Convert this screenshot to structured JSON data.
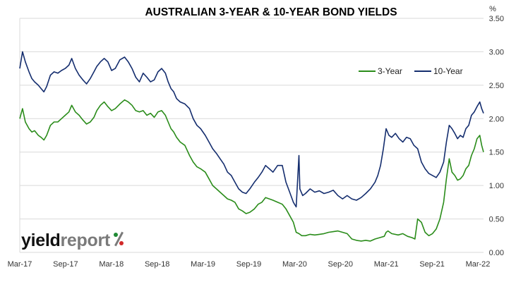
{
  "chart_data": {
    "type": "line",
    "title": "AUSTRALIAN 3-YEAR & 10-YEAR BOND YIELDS",
    "ylabel": "%",
    "ylim": [
      0,
      3.5
    ],
    "yticks": [
      "0.00",
      "0.50",
      "1.00",
      "1.50",
      "2.00",
      "2.50",
      "3.00",
      "3.50"
    ],
    "xticks": [
      "Mar-17",
      "Sep-17",
      "Mar-18",
      "Sep-18",
      "Mar-19",
      "Sep-19",
      "Mar-20",
      "Sep-20",
      "Mar-21",
      "Sep-21",
      "Mar-22"
    ],
    "x_range": [
      2017.17,
      2022.17
    ],
    "grid": "horizontal",
    "legend_position": "top-right",
    "series": [
      {
        "name": "3-Year",
        "color": "#2a8c1a",
        "points": [
          [
            2017.17,
            2.0
          ],
          [
            2017.2,
            2.15
          ],
          [
            2017.23,
            1.95
          ],
          [
            2017.27,
            1.85
          ],
          [
            2017.3,
            1.8
          ],
          [
            2017.33,
            1.82
          ],
          [
            2017.37,
            1.75
          ],
          [
            2017.4,
            1.72
          ],
          [
            2017.43,
            1.68
          ],
          [
            2017.46,
            1.75
          ],
          [
            2017.5,
            1.9
          ],
          [
            2017.54,
            1.95
          ],
          [
            2017.58,
            1.95
          ],
          [
            2017.62,
            2.0
          ],
          [
            2017.66,
            2.05
          ],
          [
            2017.7,
            2.1
          ],
          [
            2017.73,
            2.2
          ],
          [
            2017.77,
            2.1
          ],
          [
            2017.81,
            2.05
          ],
          [
            2017.85,
            1.98
          ],
          [
            2017.89,
            1.92
          ],
          [
            2017.93,
            1.95
          ],
          [
            2017.97,
            2.02
          ],
          [
            2018.0,
            2.12
          ],
          [
            2018.04,
            2.2
          ],
          [
            2018.08,
            2.25
          ],
          [
            2018.12,
            2.18
          ],
          [
            2018.16,
            2.12
          ],
          [
            2018.2,
            2.15
          ],
          [
            2018.25,
            2.22
          ],
          [
            2018.3,
            2.28
          ],
          [
            2018.34,
            2.25
          ],
          [
            2018.38,
            2.2
          ],
          [
            2018.42,
            2.12
          ],
          [
            2018.46,
            2.1
          ],
          [
            2018.5,
            2.12
          ],
          [
            2018.54,
            2.05
          ],
          [
            2018.58,
            2.08
          ],
          [
            2018.62,
            2.02
          ],
          [
            2018.66,
            2.1
          ],
          [
            2018.7,
            2.12
          ],
          [
            2018.74,
            2.05
          ],
          [
            2018.77,
            1.95
          ],
          [
            2018.8,
            1.85
          ],
          [
            2018.83,
            1.8
          ],
          [
            2018.86,
            1.72
          ],
          [
            2018.9,
            1.65
          ],
          [
            2018.95,
            1.6
          ],
          [
            2019.0,
            1.45
          ],
          [
            2019.04,
            1.35
          ],
          [
            2019.08,
            1.28
          ],
          [
            2019.12,
            1.25
          ],
          [
            2019.17,
            1.2
          ],
          [
            2019.21,
            1.1
          ],
          [
            2019.25,
            1.0
          ],
          [
            2019.29,
            0.95
          ],
          [
            2019.33,
            0.9
          ],
          [
            2019.37,
            0.85
          ],
          [
            2019.41,
            0.8
          ],
          [
            2019.45,
            0.78
          ],
          [
            2019.49,
            0.75
          ],
          [
            2019.53,
            0.65
          ],
          [
            2019.57,
            0.62
          ],
          [
            2019.61,
            0.58
          ],
          [
            2019.65,
            0.6
          ],
          [
            2019.7,
            0.65
          ],
          [
            2019.74,
            0.72
          ],
          [
            2019.78,
            0.75
          ],
          [
            2019.82,
            0.82
          ],
          [
            2019.86,
            0.8
          ],
          [
            2019.9,
            0.78
          ],
          [
            2019.95,
            0.75
          ],
          [
            2020.0,
            0.72
          ],
          [
            2020.04,
            0.65
          ],
          [
            2020.08,
            0.55
          ],
          [
            2020.12,
            0.45
          ],
          [
            2020.15,
            0.3
          ],
          [
            2020.18,
            0.28
          ],
          [
            2020.21,
            0.25
          ],
          [
            2020.25,
            0.25
          ],
          [
            2020.3,
            0.27
          ],
          [
            2020.35,
            0.26
          ],
          [
            2020.4,
            0.27
          ],
          [
            2020.45,
            0.28
          ],
          [
            2020.5,
            0.3
          ],
          [
            2020.55,
            0.31
          ],
          [
            2020.6,
            0.32
          ],
          [
            2020.65,
            0.3
          ],
          [
            2020.7,
            0.28
          ],
          [
            2020.75,
            0.2
          ],
          [
            2020.8,
            0.18
          ],
          [
            2020.85,
            0.17
          ],
          [
            2020.9,
            0.18
          ],
          [
            2020.95,
            0.17
          ],
          [
            2021.0,
            0.2
          ],
          [
            2021.05,
            0.22
          ],
          [
            2021.1,
            0.24
          ],
          [
            2021.12,
            0.3
          ],
          [
            2021.14,
            0.32
          ],
          [
            2021.18,
            0.28
          ],
          [
            2021.25,
            0.26
          ],
          [
            2021.3,
            0.28
          ],
          [
            2021.35,
            0.24
          ],
          [
            2021.4,
            0.22
          ],
          [
            2021.43,
            0.2
          ],
          [
            2021.46,
            0.5
          ],
          [
            2021.5,
            0.45
          ],
          [
            2021.54,
            0.3
          ],
          [
            2021.58,
            0.25
          ],
          [
            2021.62,
            0.28
          ],
          [
            2021.66,
            0.35
          ],
          [
            2021.7,
            0.5
          ],
          [
            2021.74,
            0.75
          ],
          [
            2021.77,
            1.1
          ],
          [
            2021.8,
            1.4
          ],
          [
            2021.83,
            1.2
          ],
          [
            2021.86,
            1.15
          ],
          [
            2021.89,
            1.08
          ],
          [
            2021.92,
            1.1
          ],
          [
            2021.95,
            1.15
          ],
          [
            2021.98,
            1.25
          ],
          [
            2022.01,
            1.3
          ],
          [
            2022.04,
            1.45
          ],
          [
            2022.07,
            1.55
          ],
          [
            2022.1,
            1.7
          ],
          [
            2022.13,
            1.75
          ],
          [
            2022.15,
            1.6
          ],
          [
            2022.17,
            1.5
          ]
        ]
      },
      {
        "name": "10-Year",
        "color": "#142d6e",
        "points": [
          [
            2017.17,
            2.75
          ],
          [
            2017.2,
            3.0
          ],
          [
            2017.23,
            2.85
          ],
          [
            2017.27,
            2.7
          ],
          [
            2017.3,
            2.6
          ],
          [
            2017.33,
            2.55
          ],
          [
            2017.37,
            2.5
          ],
          [
            2017.4,
            2.45
          ],
          [
            2017.43,
            2.4
          ],
          [
            2017.46,
            2.48
          ],
          [
            2017.5,
            2.65
          ],
          [
            2017.54,
            2.7
          ],
          [
            2017.58,
            2.68
          ],
          [
            2017.62,
            2.72
          ],
          [
            2017.66,
            2.75
          ],
          [
            2017.7,
            2.8
          ],
          [
            2017.73,
            2.9
          ],
          [
            2017.77,
            2.75
          ],
          [
            2017.81,
            2.65
          ],
          [
            2017.85,
            2.58
          ],
          [
            2017.89,
            2.52
          ],
          [
            2017.93,
            2.6
          ],
          [
            2017.97,
            2.7
          ],
          [
            2018.0,
            2.78
          ],
          [
            2018.04,
            2.85
          ],
          [
            2018.08,
            2.9
          ],
          [
            2018.12,
            2.85
          ],
          [
            2018.16,
            2.72
          ],
          [
            2018.2,
            2.75
          ],
          [
            2018.25,
            2.88
          ],
          [
            2018.3,
            2.92
          ],
          [
            2018.34,
            2.85
          ],
          [
            2018.38,
            2.75
          ],
          [
            2018.42,
            2.62
          ],
          [
            2018.46,
            2.55
          ],
          [
            2018.5,
            2.68
          ],
          [
            2018.54,
            2.62
          ],
          [
            2018.58,
            2.55
          ],
          [
            2018.62,
            2.58
          ],
          [
            2018.66,
            2.7
          ],
          [
            2018.7,
            2.75
          ],
          [
            2018.74,
            2.68
          ],
          [
            2018.77,
            2.55
          ],
          [
            2018.8,
            2.45
          ],
          [
            2018.83,
            2.4
          ],
          [
            2018.86,
            2.3
          ],
          [
            2018.9,
            2.25
          ],
          [
            2018.95,
            2.22
          ],
          [
            2019.0,
            2.15
          ],
          [
            2019.04,
            2.0
          ],
          [
            2019.08,
            1.9
          ],
          [
            2019.12,
            1.85
          ],
          [
            2019.17,
            1.75
          ],
          [
            2019.21,
            1.65
          ],
          [
            2019.25,
            1.55
          ],
          [
            2019.29,
            1.48
          ],
          [
            2019.33,
            1.4
          ],
          [
            2019.37,
            1.32
          ],
          [
            2019.41,
            1.2
          ],
          [
            2019.45,
            1.15
          ],
          [
            2019.49,
            1.05
          ],
          [
            2019.53,
            0.95
          ],
          [
            2019.57,
            0.9
          ],
          [
            2019.61,
            0.88
          ],
          [
            2019.65,
            0.95
          ],
          [
            2019.7,
            1.05
          ],
          [
            2019.74,
            1.12
          ],
          [
            2019.78,
            1.2
          ],
          [
            2019.82,
            1.3
          ],
          [
            2019.86,
            1.25
          ],
          [
            2019.9,
            1.2
          ],
          [
            2019.95,
            1.3
          ],
          [
            2020.0,
            1.3
          ],
          [
            2020.04,
            1.05
          ],
          [
            2020.08,
            0.9
          ],
          [
            2020.12,
            0.75
          ],
          [
            2020.15,
            0.68
          ],
          [
            2020.18,
            1.45
          ],
          [
            2020.19,
            0.95
          ],
          [
            2020.22,
            0.85
          ],
          [
            2020.25,
            0.88
          ],
          [
            2020.3,
            0.95
          ],
          [
            2020.35,
            0.9
          ],
          [
            2020.4,
            0.92
          ],
          [
            2020.45,
            0.88
          ],
          [
            2020.5,
            0.9
          ],
          [
            2020.55,
            0.93
          ],
          [
            2020.6,
            0.85
          ],
          [
            2020.65,
            0.8
          ],
          [
            2020.7,
            0.85
          ],
          [
            2020.75,
            0.8
          ],
          [
            2020.8,
            0.78
          ],
          [
            2020.85,
            0.82
          ],
          [
            2020.9,
            0.88
          ],
          [
            2020.95,
            0.95
          ],
          [
            2021.0,
            1.05
          ],
          [
            2021.03,
            1.15
          ],
          [
            2021.06,
            1.3
          ],
          [
            2021.09,
            1.55
          ],
          [
            2021.12,
            1.85
          ],
          [
            2021.15,
            1.75
          ],
          [
            2021.18,
            1.72
          ],
          [
            2021.22,
            1.78
          ],
          [
            2021.26,
            1.7
          ],
          [
            2021.3,
            1.65
          ],
          [
            2021.34,
            1.72
          ],
          [
            2021.38,
            1.7
          ],
          [
            2021.42,
            1.6
          ],
          [
            2021.46,
            1.55
          ],
          [
            2021.5,
            1.35
          ],
          [
            2021.54,
            1.25
          ],
          [
            2021.58,
            1.18
          ],
          [
            2021.62,
            1.15
          ],
          [
            2021.66,
            1.12
          ],
          [
            2021.7,
            1.2
          ],
          [
            2021.74,
            1.35
          ],
          [
            2021.77,
            1.65
          ],
          [
            2021.8,
            1.9
          ],
          [
            2021.83,
            1.85
          ],
          [
            2021.86,
            1.78
          ],
          [
            2021.89,
            1.7
          ],
          [
            2021.92,
            1.75
          ],
          [
            2021.95,
            1.72
          ],
          [
            2021.98,
            1.85
          ],
          [
            2022.01,
            1.9
          ],
          [
            2022.04,
            2.05
          ],
          [
            2022.07,
            2.1
          ],
          [
            2022.1,
            2.18
          ],
          [
            2022.13,
            2.25
          ],
          [
            2022.15,
            2.15
          ],
          [
            2022.17,
            2.08
          ]
        ]
      }
    ]
  },
  "branding": {
    "logo_part1": "yield",
    "logo_part2": "report",
    "logo_mark": "%"
  }
}
